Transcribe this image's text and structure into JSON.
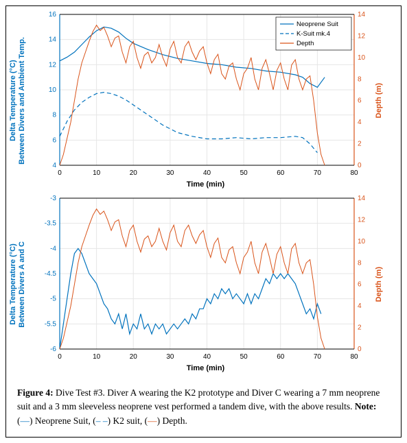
{
  "figure_label": "Figure 4:",
  "caption_text": "Dive Test #3. Diver A wearing the K2 prototype and Diver C wearing a 7 mm neoprene suit and a 3 mm sleeveless neoprene vest performed a tandem dive, with the above results.",
  "caption_note_label": "Note:",
  "caption_legend_neoprene": "Neoprene Suit,",
  "caption_legend_k2": "K2 suit,",
  "caption_legend_depth": "Depth.",
  "colors": {
    "left_axis": "#0072bd",
    "right_axis": "#d95319",
    "grid": "#e6e6e6",
    "axis_line": "#000000",
    "background": "#ffffff",
    "neoprene": "#0072bd",
    "ksuit": "#0072bd",
    "depth": "#d95319",
    "diff": "#0072bd"
  },
  "chart_top": {
    "type": "line-dual-axis",
    "xlabel": "Time (min)",
    "ylabel_left": "Delta Temperature (°C)\nBetween Divers and Ambient Temp.",
    "ylabel_right": "Depth (m)",
    "xlim": [
      0,
      80
    ],
    "xtick_step": 10,
    "ylim_left": [
      4,
      16
    ],
    "ytick_left_step": 2,
    "ylim_right": [
      0,
      14
    ],
    "ytick_right_step": 2,
    "label_fontsize": 11,
    "tick_fontsize": 10,
    "legend": {
      "items": [
        "Neoprene Suit",
        "K-Suit mk.4",
        "Depth"
      ],
      "position": "top-right",
      "styles": [
        "solid-blue",
        "dashed-blue",
        "solid-orange"
      ]
    },
    "series": {
      "neoprene": {
        "color": "#0072bd",
        "style": "solid",
        "width": 1.2,
        "x": [
          0,
          2,
          4,
          6,
          8,
          10,
          12,
          14,
          16,
          18,
          20,
          24,
          28,
          32,
          36,
          40,
          44,
          48,
          52,
          56,
          60,
          64,
          66,
          68,
          70,
          72
        ],
        "y": [
          12.3,
          12.6,
          13.0,
          13.6,
          14.2,
          14.7,
          15.0,
          14.9,
          14.6,
          14.1,
          13.7,
          13.2,
          12.8,
          12.5,
          12.3,
          12.1,
          12.0,
          11.8,
          11.7,
          11.5,
          11.4,
          11.2,
          11.0,
          10.5,
          10.2,
          11.0
        ]
      },
      "ksuit": {
        "color": "#0072bd",
        "style": "dashed",
        "width": 1.2,
        "dash": "6 4",
        "x": [
          0,
          2,
          4,
          6,
          8,
          10,
          12,
          14,
          16,
          18,
          20,
          24,
          28,
          32,
          36,
          40,
          44,
          48,
          52,
          56,
          60,
          64,
          66,
          68,
          70
        ],
        "y": [
          6.3,
          7.5,
          8.4,
          9.0,
          9.4,
          9.7,
          9.8,
          9.7,
          9.5,
          9.2,
          8.8,
          8.0,
          7.2,
          6.6,
          6.3,
          6.1,
          6.1,
          6.2,
          6.1,
          6.2,
          6.2,
          6.3,
          6.2,
          5.7,
          5.0
        ]
      },
      "depth": {
        "color": "#d95319",
        "style": "solid",
        "width": 1.0,
        "x": [
          0,
          1,
          2,
          3,
          4,
          5,
          6,
          7,
          8,
          9,
          10,
          11,
          12,
          13,
          14,
          15,
          16,
          17,
          18,
          19,
          20,
          21,
          22,
          23,
          24,
          25,
          26,
          27,
          28,
          29,
          30,
          31,
          32,
          33,
          34,
          35,
          36,
          37,
          38,
          39,
          40,
          41,
          42,
          43,
          44,
          45,
          46,
          47,
          48,
          49,
          50,
          51,
          52,
          53,
          54,
          55,
          56,
          57,
          58,
          59,
          60,
          61,
          62,
          63,
          64,
          65,
          66,
          67,
          68,
          69,
          70,
          71,
          72
        ],
        "y_right": [
          0,
          1.0,
          2.5,
          4.0,
          6.0,
          8.0,
          9.5,
          10.5,
          11.5,
          12.4,
          13.0,
          12.5,
          12.8,
          12.0,
          11.0,
          11.8,
          12.0,
          10.5,
          9.5,
          11.0,
          11.5,
          10.0,
          9.0,
          10.2,
          10.5,
          9.5,
          10.0,
          11.2,
          10.0,
          9.2,
          10.8,
          11.5,
          10.0,
          9.5,
          11.0,
          11.5,
          10.5,
          9.8,
          10.6,
          11.0,
          9.5,
          8.5,
          9.8,
          10.3,
          8.5,
          8.0,
          9.2,
          9.5,
          8.0,
          7.0,
          8.5,
          9.0,
          10.0,
          8.0,
          7.0,
          9.0,
          9.8,
          8.5,
          7.0,
          8.8,
          9.5,
          8.0,
          7.0,
          9.3,
          9.8,
          8.0,
          7.0,
          8.0,
          8.3,
          6.0,
          3.0,
          1.0,
          0
        ]
      }
    }
  },
  "chart_bottom": {
    "type": "line-dual-axis",
    "xlabel": "Time (min)",
    "ylabel_left": "Delta Temperature (°C)\nBetween Divers A and C",
    "ylabel_right": "Depth (m)",
    "xlim": [
      0,
      80
    ],
    "xtick_step": 10,
    "ylim_left": [
      -6,
      -3
    ],
    "ytick_left_step": 0.5,
    "ylim_right": [
      0,
      14
    ],
    "ytick_right_step": 2,
    "label_fontsize": 11,
    "tick_fontsize": 10,
    "series": {
      "diff": {
        "color": "#0072bd",
        "style": "solid",
        "width": 1.2,
        "x": [
          0,
          1,
          2,
          3,
          4,
          5,
          6,
          7,
          8,
          9,
          10,
          11,
          12,
          13,
          14,
          15,
          16,
          17,
          18,
          19,
          20,
          21,
          22,
          23,
          24,
          25,
          26,
          27,
          28,
          29,
          30,
          31,
          32,
          33,
          34,
          35,
          36,
          37,
          38,
          39,
          40,
          41,
          42,
          43,
          44,
          45,
          46,
          47,
          48,
          49,
          50,
          51,
          52,
          53,
          54,
          55,
          56,
          57,
          58,
          59,
          60,
          61,
          62,
          63,
          64,
          65,
          66,
          67,
          68,
          69,
          70,
          71
        ],
        "y": [
          -6.0,
          -5.5,
          -5.0,
          -4.5,
          -4.1,
          -4.0,
          -4.1,
          -4.3,
          -4.5,
          -4.6,
          -4.7,
          -4.9,
          -5.1,
          -5.2,
          -5.4,
          -5.5,
          -5.3,
          -5.6,
          -5.3,
          -5.7,
          -5.5,
          -5.6,
          -5.3,
          -5.6,
          -5.5,
          -5.7,
          -5.5,
          -5.6,
          -5.5,
          -5.7,
          -5.6,
          -5.5,
          -5.6,
          -5.5,
          -5.4,
          -5.5,
          -5.3,
          -5.4,
          -5.2,
          -5.2,
          -5.0,
          -5.1,
          -4.9,
          -5.0,
          -4.8,
          -4.9,
          -4.8,
          -5.0,
          -4.9,
          -5.0,
          -5.1,
          -4.9,
          -5.1,
          -4.9,
          -5.0,
          -4.8,
          -4.6,
          -4.7,
          -4.5,
          -4.6,
          -4.5,
          -4.6,
          -4.5,
          -4.6,
          -4.7,
          -4.9,
          -5.1,
          -5.3,
          -5.2,
          -5.4,
          -5.1,
          -5.3
        ]
      },
      "depth": {
        "color": "#d95319",
        "style": "solid",
        "width": 1.0,
        "x": [
          0,
          1,
          2,
          3,
          4,
          5,
          6,
          7,
          8,
          9,
          10,
          11,
          12,
          13,
          14,
          15,
          16,
          17,
          18,
          19,
          20,
          21,
          22,
          23,
          24,
          25,
          26,
          27,
          28,
          29,
          30,
          31,
          32,
          33,
          34,
          35,
          36,
          37,
          38,
          39,
          40,
          41,
          42,
          43,
          44,
          45,
          46,
          47,
          48,
          49,
          50,
          51,
          52,
          53,
          54,
          55,
          56,
          57,
          58,
          59,
          60,
          61,
          62,
          63,
          64,
          65,
          66,
          67,
          68,
          69,
          70,
          71,
          72
        ],
        "y_right": [
          0,
          1.0,
          2.5,
          4.0,
          6.0,
          8.0,
          9.5,
          10.5,
          11.5,
          12.4,
          13.0,
          12.5,
          12.8,
          12.0,
          11.0,
          11.8,
          12.0,
          10.5,
          9.5,
          11.0,
          11.5,
          10.0,
          9.0,
          10.2,
          10.5,
          9.5,
          10.0,
          11.2,
          10.0,
          9.2,
          10.8,
          11.5,
          10.0,
          9.5,
          11.0,
          11.5,
          10.5,
          9.8,
          10.6,
          11.0,
          9.5,
          8.5,
          9.8,
          10.3,
          8.5,
          8.0,
          9.2,
          9.5,
          8.0,
          7.0,
          8.5,
          9.0,
          10.0,
          8.0,
          7.0,
          9.0,
          9.8,
          8.5,
          7.0,
          8.8,
          9.5,
          8.0,
          7.0,
          9.3,
          9.8,
          8.0,
          7.0,
          8.0,
          8.3,
          6.0,
          3.0,
          1.0,
          0
        ]
      }
    }
  }
}
